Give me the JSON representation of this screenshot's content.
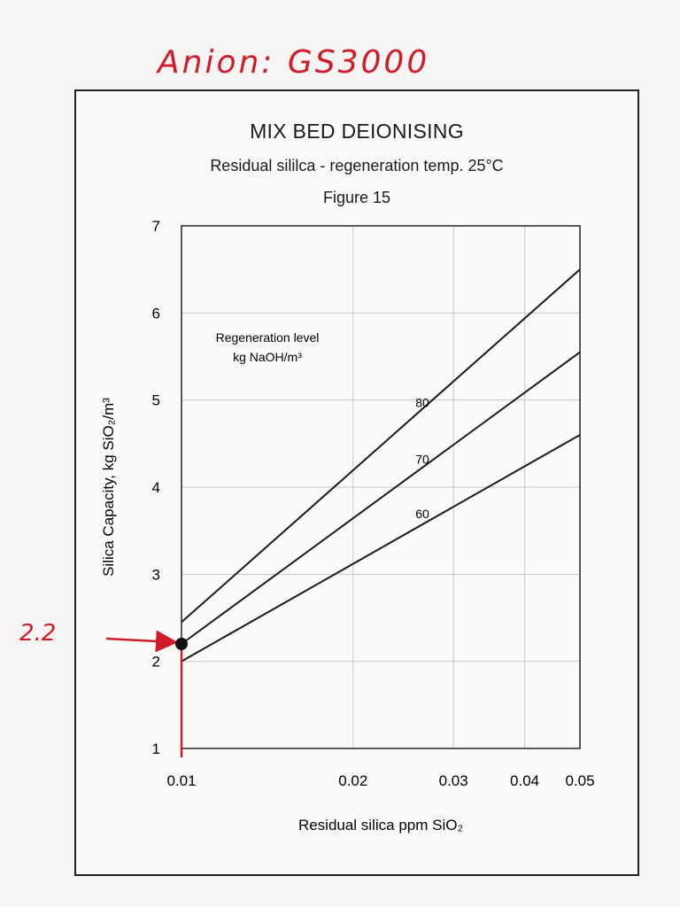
{
  "handwriting": {
    "title": "Anion: GS3000",
    "marker_label": "2.2"
  },
  "chart_data": {
    "type": "line",
    "title": "MIX BED DEIONISING",
    "subtitle": "Residual sililca - regeneration temp. 25°C",
    "figure_label": "Figure 15",
    "xlabel": "Residual silica ppm SiO₂",
    "ylabel": "Silica Capacity, kg SiO₂/m³",
    "x_scale": "log",
    "xlim": [
      0.01,
      0.05
    ],
    "ylim": [
      1,
      7
    ],
    "x_ticks": [
      "0.01",
      "0.02",
      "0.03",
      "0.04",
      "0.05"
    ],
    "x_tick_values": [
      0.01,
      0.02,
      0.03,
      0.04,
      0.05
    ],
    "y_ticks": [
      "1",
      "2",
      "3",
      "4",
      "5",
      "6",
      "7"
    ],
    "y_tick_values": [
      1,
      2,
      3,
      4,
      5,
      6,
      7
    ],
    "grid": true,
    "legend_title": [
      "Regeneration level",
      "kg NaOH/m³"
    ],
    "series": [
      {
        "name": "80",
        "x": [
          0.01,
          0.05
        ],
        "y": [
          2.45,
          6.5
        ]
      },
      {
        "name": "70",
        "x": [
          0.01,
          0.05
        ],
        "y": [
          2.2,
          5.55
        ]
      },
      {
        "name": "60",
        "x": [
          0.01,
          0.05
        ],
        "y": [
          2.0,
          4.6
        ]
      }
    ],
    "highlight_point": {
      "x": 0.01,
      "y": 2.2
    },
    "colors": {
      "line": "#1a1a1a",
      "grid": "#c8c8c8",
      "annotation": "#d11a2a"
    }
  }
}
